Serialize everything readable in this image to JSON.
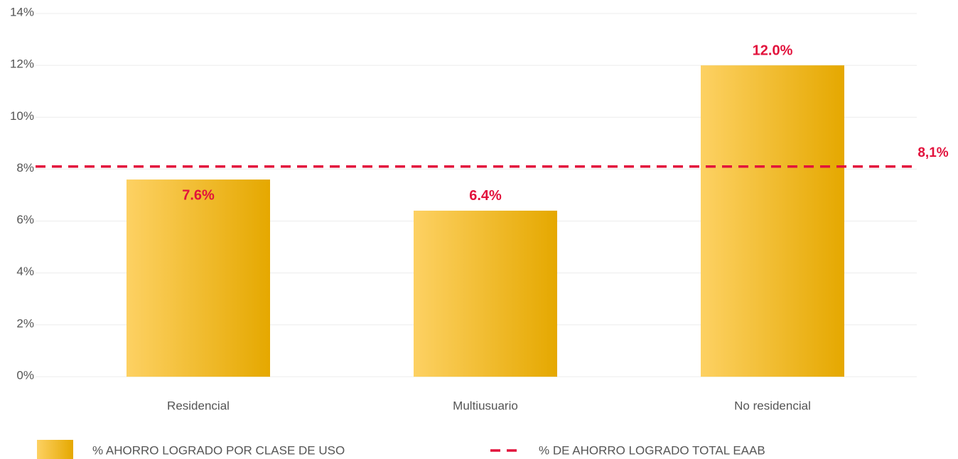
{
  "chart_data": {
    "type": "bar",
    "categories": [
      "Residencial",
      "Multiusuario",
      "No residencial"
    ],
    "series": [
      {
        "name": "% AHORRO LOGRADO POR CLASE DE USO",
        "color": [
          "#fdd163",
          "#e5a800"
        ],
        "values": [
          7.6,
          6.4,
          12.0
        ],
        "value_labels": [
          "7.6%",
          "6.4%",
          "12.0%"
        ]
      }
    ],
    "reference": {
      "name": "% DE AHORRO LOGRADO TOTAL EAAB",
      "value": 8.1,
      "label": "8,1%",
      "color": "#e2123c"
    },
    "ylim": [
      0,
      14
    ],
    "yticks": [
      {
        "value": 0,
        "label": "0%"
      },
      {
        "value": 2,
        "label": "2%"
      },
      {
        "value": 4,
        "label": "4%"
      },
      {
        "value": 6,
        "label": "6%"
      },
      {
        "value": 8,
        "label": "8%"
      },
      {
        "value": 10,
        "label": "10%"
      },
      {
        "value": 12,
        "label": "12%"
      },
      {
        "value": 14,
        "label": "14%"
      }
    ],
    "grid": true,
    "legend": "bottom"
  }
}
